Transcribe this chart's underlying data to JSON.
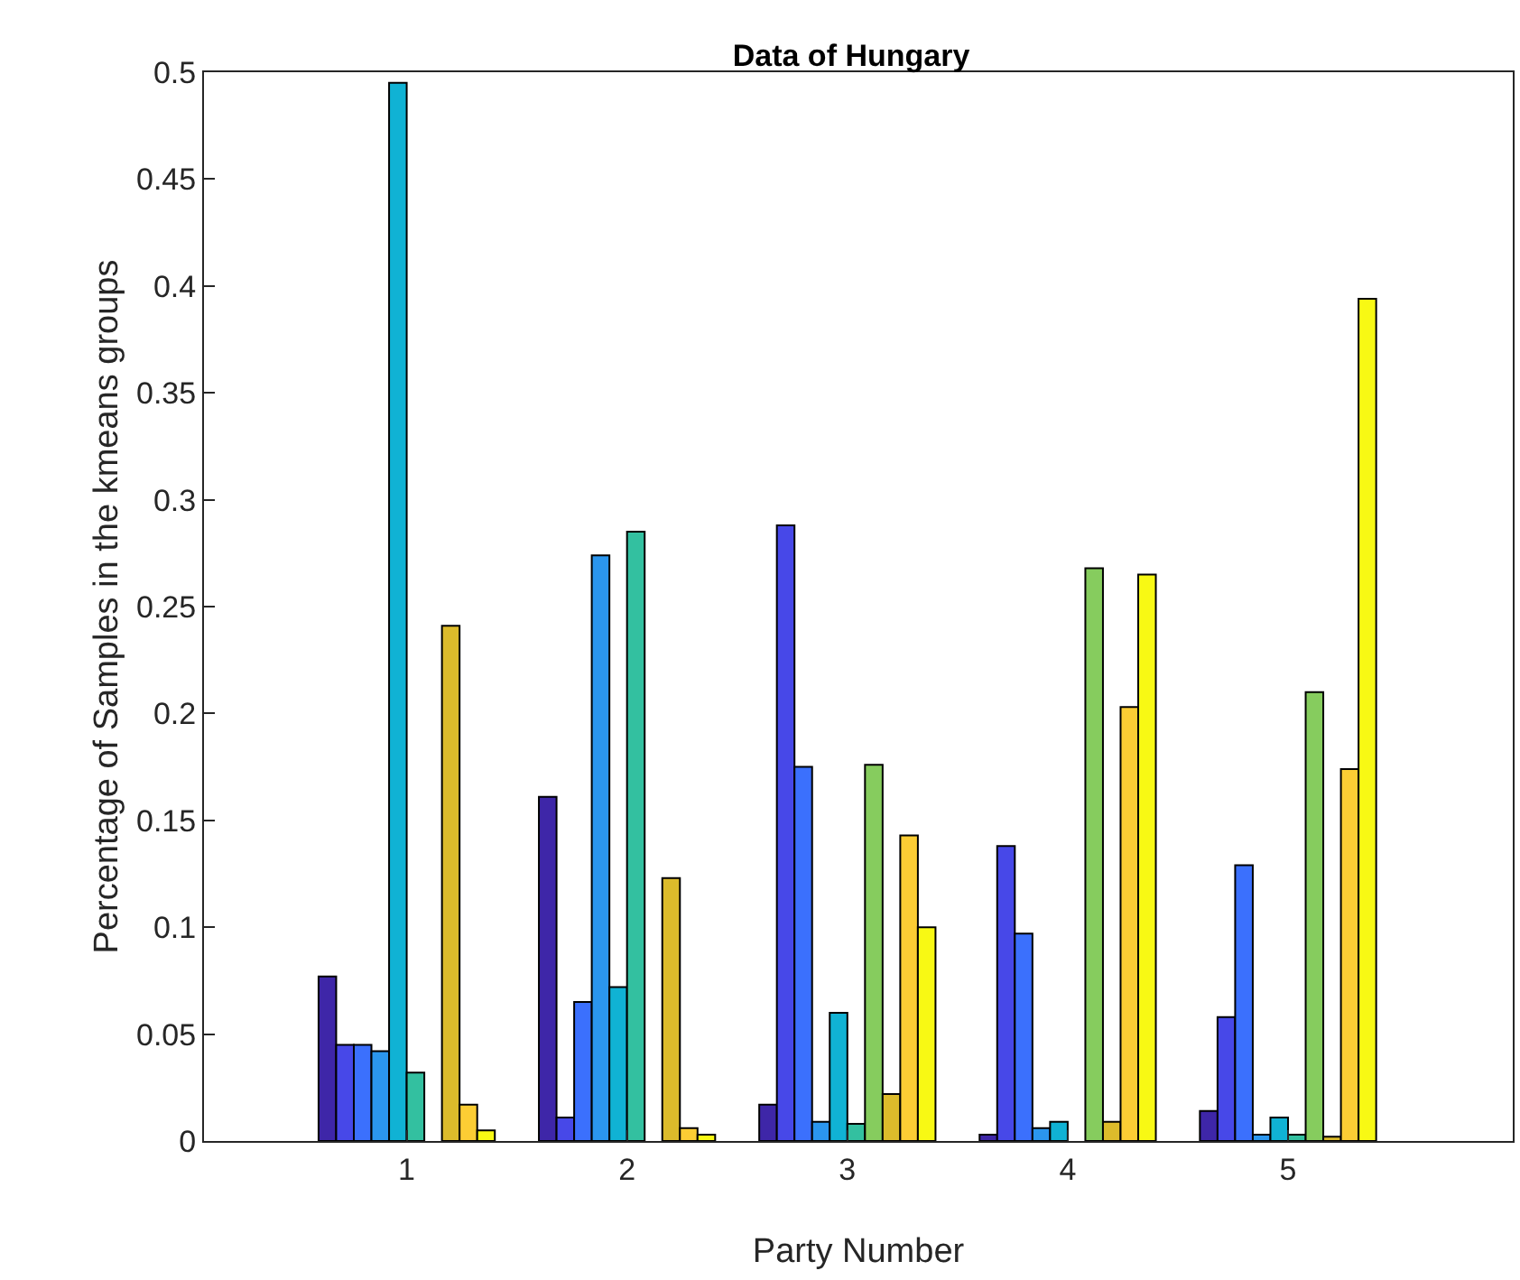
{
  "chart_data": {
    "type": "bar",
    "title": "Data of Hungary",
    "xlabel": "Party Number",
    "ylabel": "Percentage of Samples in the kmeans groups",
    "categories": [
      "1",
      "2",
      "3",
      "4",
      "5"
    ],
    "series": [
      {
        "color": "#3e26a8",
        "values": [
          0.077,
          0.161,
          0.017,
          0.003,
          0.014
        ]
      },
      {
        "color": "#4748e8",
        "values": [
          0.045,
          0.011,
          0.288,
          0.138,
          0.058
        ]
      },
      {
        "color": "#3b70fd",
        "values": [
          0.045,
          0.065,
          0.175,
          0.097,
          0.129
        ]
      },
      {
        "color": "#2b96ee",
        "values": [
          0.042,
          0.274,
          0.009,
          0.006,
          0.003
        ]
      },
      {
        "color": "#10b2d4",
        "values": [
          0.495,
          0.072,
          0.06,
          0.009,
          0.011
        ]
      },
      {
        "color": "#33c0a0",
        "values": [
          0.032,
          0.285,
          0.008,
          0,
          0.003
        ]
      },
      {
        "color": "#86cc5e",
        "values": [
          0,
          0,
          0.176,
          0.268,
          0.21
        ]
      },
      {
        "color": "#dcbb2b",
        "values": [
          0.241,
          0.123,
          0.022,
          0.009,
          0.002
        ]
      },
      {
        "color": "#fccd34",
        "values": [
          0.017,
          0.006,
          0.143,
          0.203,
          0.174
        ]
      },
      {
        "color": "#f8f914",
        "values": [
          0.005,
          0.003,
          0.1,
          0.265,
          0.394
        ]
      }
    ],
    "ylim": [
      0,
      0.5
    ],
    "yticks": [
      0,
      0.05,
      0.1,
      0.15,
      0.2,
      0.25,
      0.3,
      0.35,
      0.4,
      0.45,
      0.5
    ],
    "grid": false
  }
}
